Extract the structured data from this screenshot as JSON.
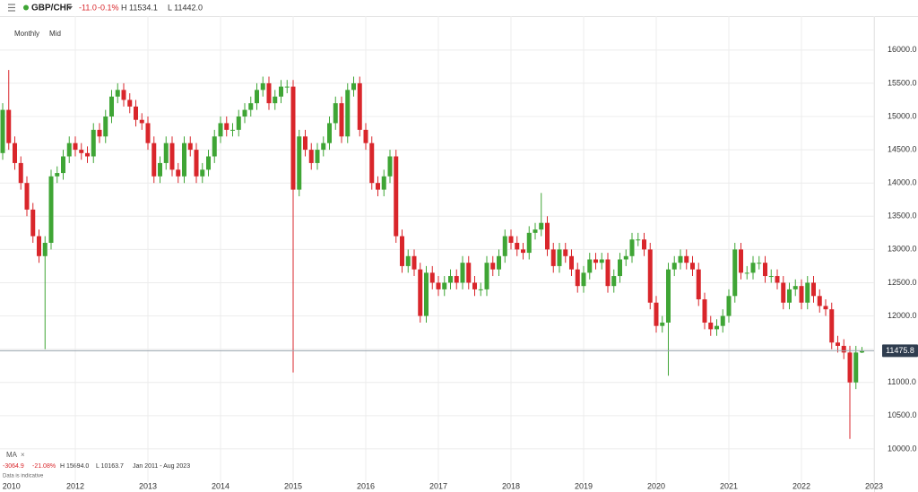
{
  "header": {
    "symbol": "GBP/CHF",
    "change": "-11.0",
    "change_pct": "-0.1%",
    "high": "H 11534.1",
    "low": "L 11442.0",
    "interval": "Monthly",
    "price_type": "Mid"
  },
  "footer": {
    "indicator": "MA",
    "change": "-3064.9",
    "change_pct": "-21.08%",
    "high": "H 15694.0",
    "low": "L 10163.7",
    "range": "Jan 2011 - Aug 2023",
    "note": "Data is indicative"
  },
  "chart_data": {
    "type": "candlestick",
    "up_color": "#3fa535",
    "down_color": "#d9262b",
    "grid": true,
    "ylim": [
      9500,
      16510
    ],
    "yticks": [
      {
        "value": 10000,
        "label": "10000.0"
      },
      {
        "value": 10500,
        "label": "10500.0"
      },
      {
        "value": 11000,
        "label": "11000.0"
      },
      {
        "value": 11500,
        "label": "11500.0"
      },
      {
        "value": 12000,
        "label": "12000.0"
      },
      {
        "value": 12500,
        "label": "12500.0"
      },
      {
        "value": 13000,
        "label": "13000.0"
      },
      {
        "value": 13500,
        "label": "13500.0"
      },
      {
        "value": 14000,
        "label": "14000.0"
      },
      {
        "value": 14500,
        "label": "14500.0"
      },
      {
        "value": 15000,
        "label": "15000.0"
      },
      {
        "value": 15500,
        "label": "15500.0"
      },
      {
        "value": 16000,
        "label": "16000.0"
      }
    ],
    "categories": [
      null,
      "2010",
      null,
      null,
      null,
      null,
      null,
      null,
      null,
      null,
      null,
      null,
      "2012",
      null,
      null,
      null,
      null,
      null,
      null,
      null,
      null,
      null,
      null,
      null,
      "2013",
      null,
      null,
      null,
      null,
      null,
      null,
      null,
      null,
      null,
      null,
      null,
      "2014",
      null,
      null,
      null,
      null,
      null,
      null,
      null,
      null,
      null,
      null,
      null,
      "2015",
      null,
      null,
      null,
      null,
      null,
      null,
      null,
      null,
      null,
      null,
      null,
      "2016",
      null,
      null,
      null,
      null,
      null,
      null,
      null,
      null,
      null,
      null,
      null,
      "2017",
      null,
      null,
      null,
      null,
      null,
      null,
      null,
      null,
      null,
      null,
      null,
      "2018",
      null,
      null,
      null,
      null,
      null,
      null,
      null,
      null,
      null,
      null,
      null,
      "2019",
      null,
      null,
      null,
      null,
      null,
      null,
      null,
      null,
      null,
      null,
      null,
      "2020",
      null,
      null,
      null,
      null,
      null,
      null,
      null,
      null,
      null,
      null,
      null,
      "2021",
      null,
      null,
      null,
      null,
      null,
      null,
      null,
      null,
      null,
      null,
      null,
      "2022",
      null,
      null,
      null,
      null,
      null,
      null,
      null,
      null,
      null,
      null,
      null,
      "2023"
    ],
    "open": [
      14450,
      15100,
      14600,
      14300,
      14000,
      13600,
      13200,
      12900,
      13100,
      14100,
      14150,
      14400,
      14600,
      14500,
      14450,
      14400,
      14800,
      14700,
      15000,
      15300,
      15400,
      15250,
      15150,
      14950,
      14900,
      14600,
      14100,
      14300,
      14600,
      14200,
      14100,
      14600,
      14500,
      14100,
      14200,
      14400,
      14700,
      14900,
      14800,
      14800,
      15000,
      15100,
      15200,
      15400,
      15500,
      15200,
      15300,
      15450,
      15450,
      13900,
      14700,
      14500,
      14300,
      14500,
      14600,
      14900,
      15200,
      14700,
      15400,
      15500,
      14800,
      14600,
      14000,
      13900,
      14100,
      14400,
      13200,
      12750,
      12900,
      12700,
      12000,
      12650,
      12500,
      12400,
      12500,
      12600,
      12500,
      12800,
      12500,
      12400,
      12400,
      12800,
      12700,
      12900,
      13200,
      13100,
      13000,
      12950,
      13250,
      13300,
      13400,
      13000,
      12750,
      13000,
      12900,
      12700,
      12450,
      12650,
      12850,
      12800,
      12850,
      12450,
      12600,
      12850,
      12900,
      13150,
      13150,
      13000,
      12200,
      11850,
      11900,
      12700,
      12800,
      12900,
      12800,
      12700,
      12250,
      11900,
      11800,
      11850,
      12000,
      12300,
      13000,
      12650,
      12650,
      12800,
      12800,
      12600,
      12600,
      12500,
      12200,
      12400,
      12450,
      12200,
      12500,
      12300,
      12150,
      12100,
      11600,
      11550,
      11450,
      11000,
      11450,
      null,
      null
    ],
    "high": [
      15200,
      15700,
      14700,
      14400,
      14100,
      13700,
      13300,
      13200,
      14200,
      14250,
      14500,
      14700,
      14700,
      14600,
      14550,
      14900,
      14900,
      15100,
      15400,
      15500,
      15500,
      15350,
      15250,
      15050,
      15000,
      14700,
      14400,
      14700,
      14700,
      14300,
      14700,
      14700,
      14600,
      14300,
      14500,
      14800,
      15000,
      15000,
      14900,
      15100,
      15200,
      15300,
      15500,
      15600,
      15600,
      15400,
      15550,
      15550,
      15550,
      14800,
      14800,
      14600,
      14600,
      14700,
      15000,
      15300,
      15300,
      15500,
      15600,
      15600,
      14900,
      14700,
      14100,
      14200,
      14500,
      14500,
      13300,
      13000,
      13000,
      12800,
      12750,
      12750,
      12600,
      12600,
      12700,
      12700,
      12900,
      12900,
      12600,
      12500,
      12900,
      12900,
      13000,
      13300,
      13300,
      13200,
      13100,
      13350,
      13400,
      13850,
      13500,
      13100,
      13100,
      13100,
      13000,
      12800,
      12750,
      12950,
      12950,
      12950,
      12950,
      12700,
      12950,
      13000,
      13250,
      13250,
      13250,
      13100,
      12300,
      12000,
      12800,
      12900,
      13000,
      13000,
      12900,
      12800,
      12350,
      12000,
      11950,
      12100,
      12400,
      13100,
      13100,
      12750,
      12900,
      12900,
      12900,
      12700,
      12700,
      12600,
      12500,
      12550,
      12550,
      12600,
      12600,
      12400,
      12250,
      12200,
      11700,
      11650,
      11550,
      11550,
      11534.1,
      null,
      null
    ],
    "low": [
      14350,
      14500,
      14200,
      13900,
      13500,
      13100,
      12800,
      11500,
      13000,
      14000,
      14050,
      14300,
      14400,
      14350,
      14300,
      14300,
      14600,
      14600,
      14900,
      15200,
      15150,
      15050,
      14850,
      14800,
      14500,
      14000,
      14000,
      14200,
      14100,
      14000,
      14000,
      14400,
      14000,
      14000,
      14100,
      14300,
      14600,
      14700,
      14700,
      14700,
      14900,
      15000,
      15100,
      15300,
      15100,
      15100,
      15200,
      15350,
      11150,
      13800,
      14400,
      14200,
      14200,
      14400,
      14500,
      14800,
      14600,
      14600,
      15300,
      14700,
      14500,
      13900,
      13800,
      13800,
      14000,
      13100,
      12650,
      12650,
      12600,
      11900,
      11900,
      12400,
      12300,
      12300,
      12400,
      12400,
      12400,
      12400,
      12300,
      12300,
      12300,
      12600,
      12600,
      12800,
      13000,
      12900,
      12850,
      12850,
      13150,
      13200,
      12900,
      12650,
      12650,
      12800,
      12600,
      12350,
      12350,
      12550,
      12700,
      12700,
      12350,
      12350,
      12500,
      12750,
      12800,
      13050,
      12900,
      12100,
      11750,
      11750,
      11100,
      12600,
      12700,
      12700,
      12600,
      12150,
      11800,
      11700,
      11700,
      11750,
      11900,
      12200,
      12550,
      12550,
      12550,
      12700,
      12500,
      12500,
      12400,
      12100,
      12100,
      12300,
      12100,
      12100,
      12200,
      12050,
      12000,
      11500,
      11450,
      11350,
      10150,
      10900,
      11442.0,
      null,
      null
    ],
    "close": [
      15100,
      14600,
      14300,
      14000,
      13600,
      13200,
      12900,
      13100,
      14100,
      14150,
      14400,
      14600,
      14500,
      14450,
      14400,
      14800,
      14700,
      15000,
      15300,
      15400,
      15250,
      15150,
      14950,
      14900,
      14600,
      14100,
      14300,
      14600,
      14200,
      14100,
      14600,
      14500,
      14100,
      14200,
      14400,
      14700,
      14900,
      14800,
      14800,
      15000,
      15100,
      15200,
      15400,
      15500,
      15200,
      15300,
      15450,
      15450,
      13900,
      14700,
      14500,
      14300,
      14500,
      14600,
      14900,
      15200,
      14700,
      15400,
      15500,
      14800,
      14600,
      14000,
      13900,
      14100,
      14400,
      13200,
      12750,
      12900,
      12700,
      12000,
      12650,
      12500,
      12400,
      12500,
      12600,
      12500,
      12800,
      12500,
      12400,
      12400,
      12800,
      12700,
      12900,
      13200,
      13100,
      13000,
      12950,
      13250,
      13300,
      13400,
      13000,
      12750,
      13000,
      12900,
      12700,
      12450,
      12650,
      12850,
      12800,
      12850,
      12450,
      12600,
      12850,
      12900,
      13150,
      13150,
      13000,
      12200,
      11850,
      11900,
      12700,
      12800,
      12900,
      12800,
      12700,
      12250,
      11900,
      11800,
      11850,
      12000,
      12300,
      13000,
      12650,
      12650,
      12800,
      12800,
      12600,
      12600,
      12500,
      12200,
      12400,
      12450,
      12200,
      12500,
      12300,
      12150,
      12100,
      11600,
      11550,
      11450,
      11000,
      11450,
      11475.8,
      null,
      null
    ]
  }
}
